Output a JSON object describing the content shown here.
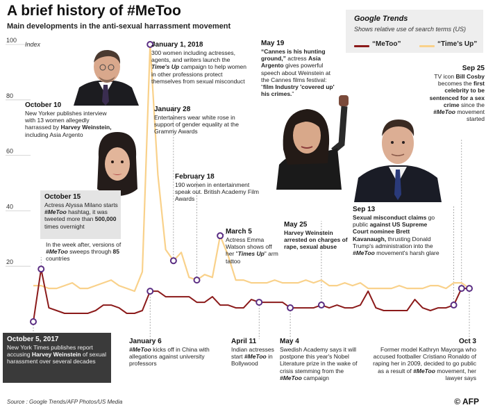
{
  "header": {
    "title": "A brief history of #MeToo",
    "subtitle": "Main developments in the anti-sexual harrassment movement"
  },
  "legend": {
    "heading": "Google Trends",
    "subheading": "Shows relative use of search terms (US)",
    "series1": "“MeToo”",
    "series2": "“Time’s Up”"
  },
  "colors": {
    "metoo": "#8b1a1a",
    "timesup": "#f9d18a",
    "marker": "#5a2d82",
    "grid": "#cccccc"
  },
  "chart_data": {
    "type": "line",
    "title": "A brief history of #MeToo",
    "ylabel": "Index",
    "ylim": [
      0,
      100
    ],
    "yticks": [
      20,
      40,
      60,
      80,
      100
    ],
    "x_start": "2017-10-05",
    "x_end": "2018-10-03",
    "series": [
      {
        "name": "“MeToo”",
        "key": "metoo",
        "values": [
          0,
          19,
          5,
          4,
          3,
          3,
          3,
          3,
          4,
          6,
          6,
          5,
          3,
          3,
          4,
          11,
          11,
          9,
          9,
          9,
          9,
          7,
          7,
          9,
          6,
          6,
          5,
          5,
          8,
          7,
          7,
          7,
          7,
          5,
          5,
          5,
          5,
          6,
          5,
          6,
          5,
          5,
          6,
          11,
          5,
          4,
          4,
          4,
          4,
          8,
          5,
          4,
          5,
          5,
          6,
          12,
          12
        ]
      },
      {
        "name": "“Time’s Up”",
        "key": "timesup",
        "values": [
          13,
          13,
          12,
          12,
          13,
          14,
          12,
          12,
          13,
          14,
          15,
          13,
          12,
          11,
          18,
          100,
          53,
          26,
          22,
          25,
          16,
          15,
          17,
          16,
          31,
          24,
          15,
          15,
          14,
          14,
          14,
          15,
          14,
          14,
          14,
          15,
          14,
          15,
          13,
          13,
          14,
          13,
          14,
          12,
          12,
          12,
          12,
          13,
          12,
          12,
          12,
          13,
          13,
          12,
          14,
          14,
          12
        ]
      }
    ],
    "markers": [
      {
        "series": "metoo",
        "index": 0,
        "label": "October 5, 2017"
      },
      {
        "series": "metoo",
        "index": 1,
        "label": "October 15"
      },
      {
        "series": "timesup",
        "index": 15,
        "label": "January 1, 2018"
      },
      {
        "series": "metoo",
        "index": 15,
        "label": "January 6"
      },
      {
        "series": "timesup",
        "index": 18,
        "label": "January 28"
      },
      {
        "series": "timesup",
        "index": 21,
        "label": "February 18"
      },
      {
        "series": "timesup",
        "index": 24,
        "label": "March 5"
      },
      {
        "series": "metoo",
        "index": 29,
        "label": "April 11"
      },
      {
        "series": "metoo",
        "index": 33,
        "label": "May 4"
      },
      {
        "series": "metoo",
        "index": 37,
        "label": "May 25"
      },
      {
        "series": "metoo",
        "index": 54,
        "label": "Sep 13"
      },
      {
        "series": "metoo",
        "index": 55,
        "label": "Sep 25"
      },
      {
        "series": "metoo",
        "index": 56,
        "label": "Oct 3"
      }
    ]
  },
  "annotations": {
    "oct10": {
      "date": "October 10",
      "t1": "New Yorker publishes interview with 13 women allegedly harrassed by ",
      "b1": "Harvey Weinstein,",
      "t2": " including Asia Argento"
    },
    "oct15": {
      "date": "October 15",
      "t1": "Actress Alyssa Milano starts ",
      "i1": "#MeToo",
      "t2": " hashtag, it was tweeted more than ",
      "b1": "500,000",
      "t3": " times overnight"
    },
    "week": {
      "t1": "In the week after, versions of ",
      "i1": "#MeToo",
      "t2": " sweeps through ",
      "b1": "85",
      "t3": " countries"
    },
    "oct5": {
      "date": "October 5, 2017",
      "t1": "New York Times publishes report accusing ",
      "b1": "Harvey Weinstein",
      "t2": " of sexual harassment over several decades"
    },
    "jan1": {
      "date": "January 1, 2018",
      "t1": "300 women including actresses, agents, and writers launch the ",
      "i1": "Time's Up",
      "t2": " campaign to help women in other professions protect themselves from sexual misconduct"
    },
    "jan28": {
      "date": "January 28",
      "t1": "Entertainers wear white rose in support of gender equality at the Grammy Awards"
    },
    "feb18": {
      "date": "February 18",
      "t1": "190 women in entertainment speak out. British Academy Film Awards"
    },
    "mar5": {
      "date": "March 5",
      "t1": "Actress Emma Watson shows off her \"",
      "i1": "Times Up",
      "t2": "\" arm tattoo"
    },
    "jan6": {
      "date": "January 6",
      "i1": "#MeToo",
      "t1": " kicks off in China with allegations against university professors"
    },
    "apr11": {
      "date": "April 11",
      "t1": "Indian actresses start ",
      "i1": "#MeToo",
      "t2": " in Bollywood"
    },
    "may4": {
      "date": "May 4",
      "t1": "Swedish Academy says it will postpone this year's Nobel Literature prize in the wake of crisis stemming from the ",
      "i1": "#MeToo",
      "t2": " campaign"
    },
    "may19": {
      "date": "May 19",
      "b1": "“Cannes is his hunting ground,”",
      "t1": " actress ",
      "b2": "Asia Argento",
      "t2": " gives powerful speech about Weinstein at the Cannes films festival: “",
      "b3": "film Industry 'covered up' his crimes.",
      "t3": "”"
    },
    "may25": {
      "date": "May 25",
      "b1": "Harvey Weinstein arrested on charges of rape, sexual abuse"
    },
    "sep13": {
      "date": "Sep 13",
      "b1": "Sexual misconduct claims",
      "t1": " go public ",
      "b2": " against US Supreme Court nominee Brett Kavanaugh,",
      "t2": " thrusting Donald Trump's administration into the ",
      "i1": "#MeToo",
      "t3": " movement's harsh glare"
    },
    "sep25": {
      "date": "Sep 25",
      "t1": "TV icon ",
      "b1": "Bill Cosby",
      "t2": " becomes the ",
      "b2": "first celebrity to be sentenced for a sex crime",
      "t3": " since the ",
      "i1": "#MeToo",
      "t4": " movement started"
    },
    "oct3": {
      "date": "Oct 3",
      "t1": "Former model  Kathryn Mayorga who accused footballer Cristiano Ronaldo of raping her in 2009, decided to go public as a result of ",
      "i1": "#MeToo",
      "t2": " movement, her lawyer says"
    }
  },
  "footer": {
    "source": "Source : Google Trends/AFP Photos/US Media",
    "logo": "© AFP"
  }
}
